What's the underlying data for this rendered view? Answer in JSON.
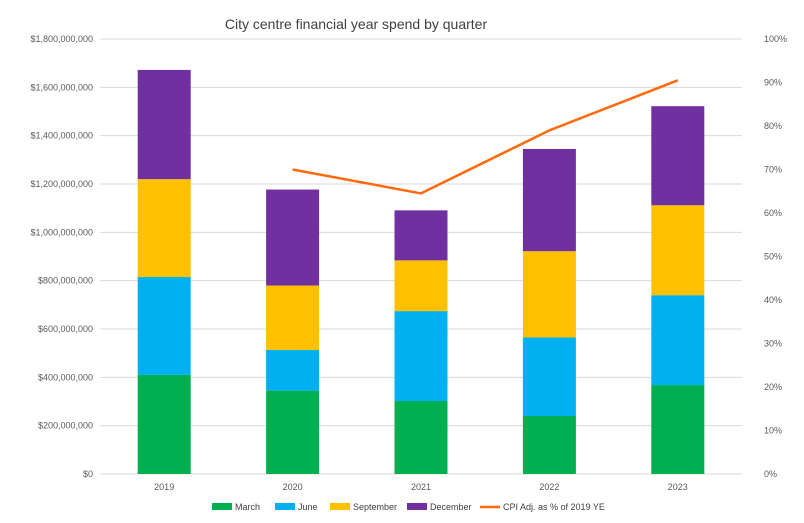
{
  "chart_data": {
    "type": "bar",
    "stacked": true,
    "title": "City centre financial year spend by quarter",
    "categories": [
      "2019",
      "2020",
      "2021",
      "2022",
      "2023"
    ],
    "series": [
      {
        "name": "March",
        "color": "#00b050",
        "values": [
          410000000,
          345000000,
          302000000,
          240000000,
          368000000
        ]
      },
      {
        "name": "June",
        "color": "#00b0f0",
        "values": [
          405000000,
          168000000,
          372000000,
          325000000,
          372000000
        ]
      },
      {
        "name": "September",
        "color": "#ffc000",
        "values": [
          405000000,
          267000000,
          210000000,
          357000000,
          372000000
        ]
      },
      {
        "name": "December",
        "color": "#7030a0",
        "values": [
          452000000,
          397000000,
          207000000,
          423000000,
          410000000
        ]
      }
    ],
    "line_series": {
      "name": "CPI Adj. as % of 2019 YE",
      "color": "#ff6a0c",
      "axis": "right",
      "values": [
        null,
        70,
        64.5,
        79,
        90.5
      ]
    },
    "y_left": {
      "min": 0,
      "max": 1800000000,
      "step": 200000000,
      "tick_labels": [
        "$0",
        "$200,000,000",
        "$400,000,000",
        "$600,000,000",
        "$800,000,000",
        "$1,000,000,000",
        "$1,200,000,000",
        "$1,400,000,000",
        "$1,600,000,000",
        "$1,800,000,000"
      ]
    },
    "y_right": {
      "min": 0,
      "max": 100,
      "step": 10,
      "tick_labels": [
        "0%",
        "10%",
        "20%",
        "30%",
        "40%",
        "50%",
        "60%",
        "70%",
        "80%",
        "90%",
        "100%"
      ]
    },
    "grid": true,
    "legend_position": "bottom"
  }
}
